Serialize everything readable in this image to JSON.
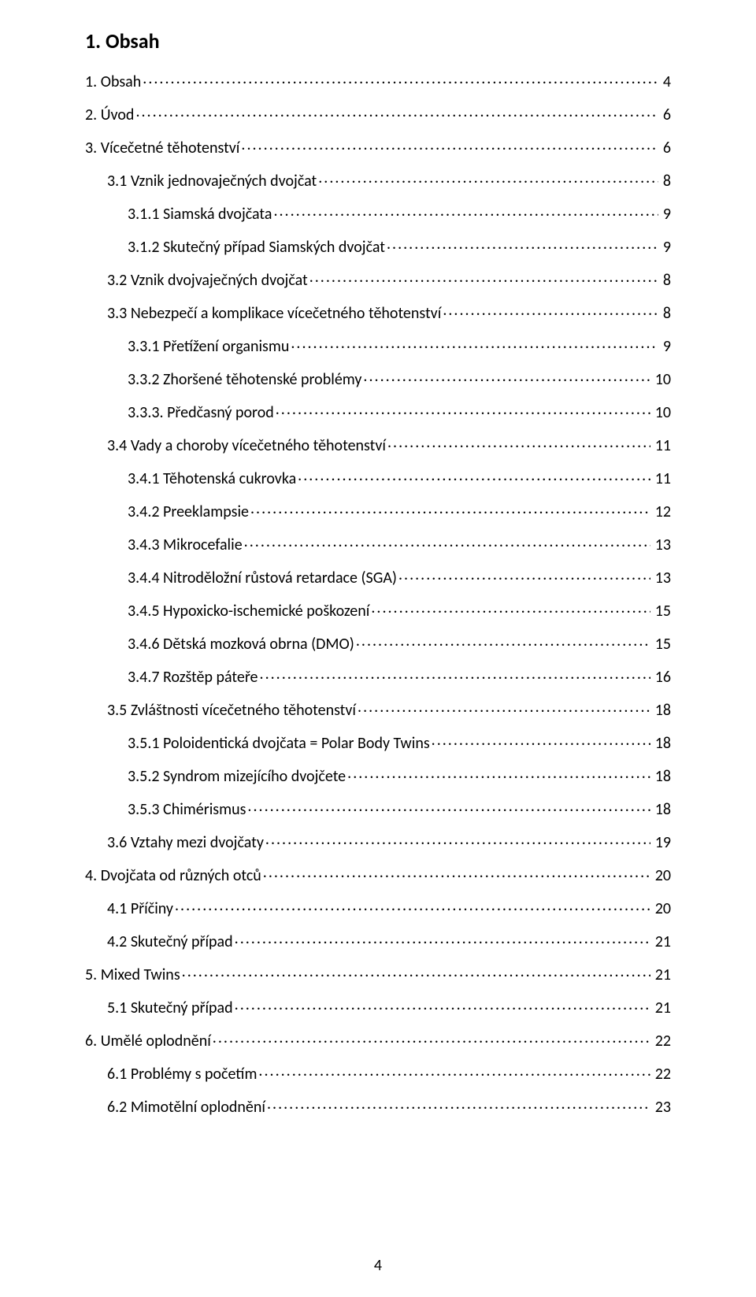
{
  "title": "1. Obsah",
  "pageNumber": "4",
  "toc": [
    {
      "level": 0,
      "label": "1. Obsah",
      "page": "4"
    },
    {
      "level": 0,
      "label": "2. Úvod",
      "page": "6"
    },
    {
      "level": 0,
      "label": "3. Vícečetné těhotenství",
      "page": "6"
    },
    {
      "level": 1,
      "label": "3.1 Vznik jednovaječných dvojčat",
      "page": "8"
    },
    {
      "level": 2,
      "label": "3.1.1 Siamská dvojčata",
      "page": "9"
    },
    {
      "level": 2,
      "label": "3.1.2 Skutečný případ Siamských dvojčat",
      "page": "9"
    },
    {
      "level": 1,
      "label": "3.2 Vznik dvojvaječných dvojčat",
      "page": "8"
    },
    {
      "level": 1,
      "label": "3.3 Nebezpečí a komplikace vícečetného těhotenství",
      "page": "8"
    },
    {
      "level": 2,
      "label": "3.3.1 Přetížení organismu",
      "page": "9"
    },
    {
      "level": 2,
      "label": "3.3.2 Zhoršené těhotenské problémy",
      "page": "10"
    },
    {
      "level": 2,
      "label": "3.3.3. Předčasný porod",
      "page": "10"
    },
    {
      "level": 1,
      "label": "3.4 Vady a choroby vícečetného těhotenství",
      "page": "11"
    },
    {
      "level": 2,
      "label": "3.4.1 Těhotenská cukrovka",
      "page": "11"
    },
    {
      "level": 2,
      "label": "3.4.2 Preeklampsie",
      "page": "12"
    },
    {
      "level": 2,
      "label": "3.4.3 Mikrocefalie",
      "page": "13"
    },
    {
      "level": 2,
      "label": "3.4.4 Nitroděložní růstová retardace (SGA)",
      "page": "13"
    },
    {
      "level": 2,
      "label": "3.4.5 Hypoxicko-ischemické poškození",
      "page": "15"
    },
    {
      "level": 2,
      "label": "3.4.6 Dětská mozková obrna (DMO)",
      "page": "15"
    },
    {
      "level": 2,
      "label": "3.4.7 Rozštěp páteře",
      "page": "16"
    },
    {
      "level": 1,
      "label": "3.5 Zvláštnosti vícečetného těhotenství",
      "page": "18"
    },
    {
      "level": 2,
      "label": "3.5.1 Poloidentická dvojčata = Polar Body Twins",
      "page": "18"
    },
    {
      "level": 2,
      "label": "3.5.2 Syndrom mizejícího dvojčete",
      "page": "18"
    },
    {
      "level": 2,
      "label": "3.5.3 Chimérismus",
      "page": "18"
    },
    {
      "level": 1,
      "label": "3.6 Vztahy mezi dvojčaty",
      "page": "19"
    },
    {
      "level": 0,
      "label": "4. Dvojčata od různých otců",
      "page": "20"
    },
    {
      "level": 1,
      "label": "4.1 Příčiny",
      "page": "20"
    },
    {
      "level": 1,
      "label": "4.2 Skutečný případ",
      "page": "21"
    },
    {
      "level": 0,
      "label": "5. Mixed Twins",
      "page": "21"
    },
    {
      "level": 1,
      "label": "5.1 Skutečný případ",
      "page": "21"
    },
    {
      "level": 0,
      "label": "6. Umělé oplodnění",
      "page": "22"
    },
    {
      "level": 1,
      "label": "6.1 Problémy s početím",
      "page": "22"
    },
    {
      "level": 1,
      "label": "6.2 Mimotělní oplodnění",
      "page": "23"
    }
  ]
}
